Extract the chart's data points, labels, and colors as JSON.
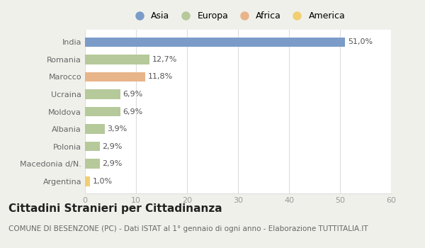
{
  "countries": [
    "India",
    "Romania",
    "Marocco",
    "Ucraina",
    "Moldova",
    "Albania",
    "Polonia",
    "Macedonia d/N.",
    "Argentina"
  ],
  "values": [
    51.0,
    12.7,
    11.8,
    6.9,
    6.9,
    3.9,
    2.9,
    2.9,
    1.0
  ],
  "labels": [
    "51,0%",
    "12,7%",
    "11,8%",
    "6,9%",
    "6,9%",
    "3,9%",
    "2,9%",
    "2,9%",
    "1,0%"
  ],
  "colors": [
    "#7b9cc8",
    "#b5c99a",
    "#e8b48a",
    "#b5c99a",
    "#b5c99a",
    "#b5c99a",
    "#b5c99a",
    "#b5c99a",
    "#f0cf72"
  ],
  "legend_labels": [
    "Asia",
    "Europa",
    "Africa",
    "America"
  ],
  "legend_colors": [
    "#7b9cc8",
    "#b5c99a",
    "#e8b48a",
    "#f0cf72"
  ],
  "xlim": [
    0,
    60
  ],
  "xticks": [
    0,
    10,
    20,
    30,
    40,
    50,
    60
  ],
  "title": "Cittadini Stranieri per Cittadinanza",
  "subtitle": "COMUNE DI BESENZONE (PC) - Dati ISTAT al 1° gennaio di ogni anno - Elaborazione TUTTITALIA.IT",
  "bg_color": "#f0f0eb",
  "plot_bg_color": "#ffffff",
  "grid_color": "#dddddd",
  "bar_height": 0.55,
  "label_fontsize": 8,
  "tick_fontsize": 8,
  "title_fontsize": 11,
  "subtitle_fontsize": 7.5
}
